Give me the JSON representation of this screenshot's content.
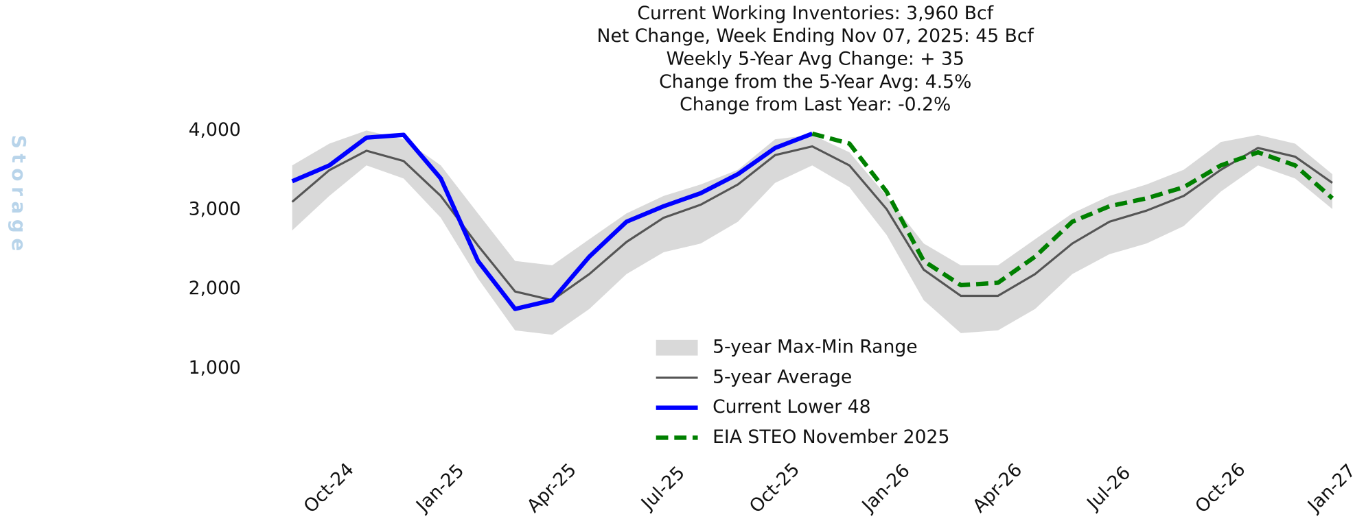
{
  "chart_data": {
    "type": "line",
    "title": [
      "Current Working Inventories: 3,960 Bcf",
      "Net Change, Week Ending Nov 07, 2025: 45 Bcf",
      "Weekly 5-Year Avg Change: + 35",
      "Change from the 5-Year Avg: 4.5%",
      "Change from Last Year: -0.2%"
    ],
    "ylabel": "Storage",
    "x": [
      "2024-09",
      "2024-10",
      "2024-11",
      "2024-12",
      "2025-01",
      "2025-02",
      "2025-03",
      "2025-04",
      "2025-05",
      "2025-06",
      "2025-07",
      "2025-08",
      "2025-09",
      "2025-10",
      "2025-11",
      "2025-12",
      "2026-01",
      "2026-02",
      "2026-03",
      "2026-04",
      "2026-05",
      "2026-06",
      "2026-07",
      "2026-08",
      "2026-09",
      "2026-10",
      "2026-11",
      "2026-12",
      "2027-01"
    ],
    "series": [
      {
        "name": "5-year Max-Min Range",
        "color": "#d9d9d9",
        "kind": "band",
        "upper": [
          3560,
          3835,
          4000,
          3890,
          3560,
          2955,
          2355,
          2300,
          2630,
          2955,
          3175,
          3320,
          3505,
          3890,
          3945,
          3725,
          3175,
          2575,
          2300,
          2300,
          2630,
          2955,
          3175,
          3320,
          3505,
          3855,
          3945,
          3835,
          3450
        ],
        "lower": [
          2740,
          3175,
          3560,
          3395,
          2900,
          2135,
          1480,
          1425,
          1750,
          2190,
          2465,
          2575,
          2850,
          3340,
          3560,
          3285,
          2685,
          1860,
          1445,
          1480,
          1750,
          2190,
          2440,
          2575,
          2795,
          3230,
          3560,
          3395,
          3010
        ]
      },
      {
        "name": "5-year Average",
        "color": "#555555",
        "kind": "solid",
        "values": [
          3100,
          3500,
          3745,
          3615,
          3175,
          2550,
          1970,
          1860,
          2190,
          2595,
          2900,
          3065,
          3320,
          3690,
          3800,
          3560,
          3010,
          2245,
          1915,
          1915,
          2190,
          2575,
          2850,
          2990,
          3175,
          3505,
          3780,
          3670,
          3340
        ]
      },
      {
        "name": "Current Lower 48",
        "color": "#0000ff",
        "kind": "thick",
        "values": [
          3360,
          3560,
          3910,
          3945,
          3395,
          2355,
          1750,
          1860,
          2410,
          2850,
          3045,
          3210,
          3450,
          3780,
          3960,
          null,
          null,
          null,
          null,
          null,
          null,
          null,
          null,
          null,
          null,
          null,
          null,
          null,
          null
        ]
      },
      {
        "name": "EIA STEO November 2025",
        "color": "#008000",
        "kind": "dashed",
        "values": [
          null,
          null,
          null,
          null,
          null,
          null,
          null,
          null,
          null,
          null,
          null,
          null,
          null,
          null,
          3960,
          3835,
          3230,
          2355,
          2050,
          2080,
          2410,
          2850,
          3045,
          3145,
          3285,
          3560,
          3725,
          3560,
          3145
        ]
      }
    ],
    "xlim": [
      "2024-09",
      "2027-01"
    ],
    "xticks": [
      {
        "value": "2024-10",
        "label": "Oct-24"
      },
      {
        "value": "2025-01",
        "label": "Jan-25"
      },
      {
        "value": "2025-04",
        "label": "Apr-25"
      },
      {
        "value": "2025-07",
        "label": "Jul-25"
      },
      {
        "value": "2025-10",
        "label": "Oct-25"
      },
      {
        "value": "2026-01",
        "label": "Jan-26"
      },
      {
        "value": "2026-04",
        "label": "Apr-26"
      },
      {
        "value": "2026-07",
        "label": "Jul-26"
      },
      {
        "value": "2026-10",
        "label": "Oct-26"
      },
      {
        "value": "2027-01",
        "label": "Jan-27"
      }
    ],
    "ylim": [
      0,
      4100
    ],
    "yticks": [
      {
        "value": 1000,
        "label": "1,000"
      },
      {
        "value": 2000,
        "label": "2,000"
      },
      {
        "value": 3000,
        "label": "3,000"
      },
      {
        "value": 4000,
        "label": "4,000"
      }
    ],
    "grid": false
  }
}
